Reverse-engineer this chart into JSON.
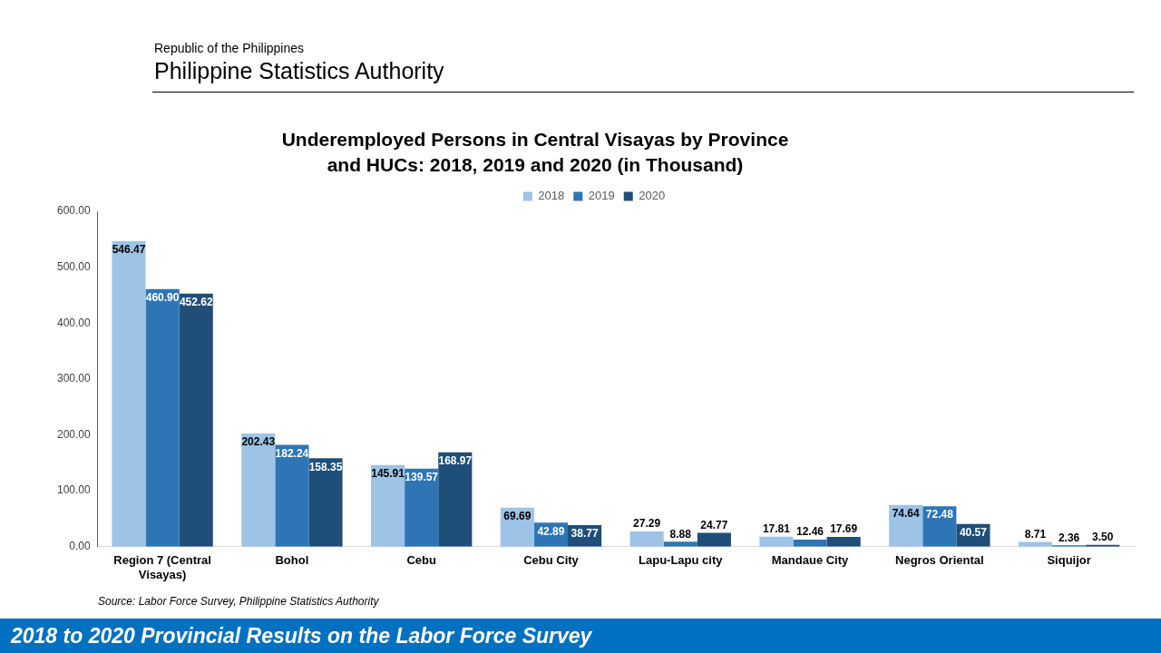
{
  "chart_data": {
    "type": "bar",
    "title": "Underemployed Persons in Central Visayas by Province and HUCs: 2018, 2019 and 2020 (in Thousand)",
    "categories": [
      "Region 7 (Central Visayas)",
      "Bohol",
      "Cebu",
      "Cebu City",
      "Lapu-Lapu city",
      "Mandaue City",
      "Negros Oriental",
      "Siquijor"
    ],
    "series": [
      {
        "name": "2018",
        "color": "#9dc3e6",
        "values": [
          546.47,
          202.43,
          145.91,
          69.69,
          27.29,
          17.81,
          74.64,
          8.71
        ],
        "value_labels": [
          "546.47",
          "202.43",
          "145.91",
          "69.69",
          "27.29",
          "17.81",
          "74.64",
          "8.71"
        ]
      },
      {
        "name": "2019",
        "color": "#2e75b6",
        "values": [
          460.9,
          182.24,
          139.57,
          42.89,
          8.88,
          12.46,
          72.48,
          2.36
        ],
        "value_labels": [
          "460.90",
          "182.24",
          "139.57",
          "42.89",
          "8.88",
          "12.46",
          "72.48",
          "2.36"
        ]
      },
      {
        "name": "2020",
        "color": "#1f4e79",
        "values": [
          452.62,
          158.35,
          168.97,
          38.77,
          24.77,
          17.69,
          40.57,
          3.5
        ],
        "value_labels": [
          "452.62",
          "158.35",
          "168.97",
          "38.77",
          "24.77",
          "17.69",
          "40.57",
          "3.50"
        ]
      }
    ],
    "ylim": [
      0,
      600
    ],
    "yticks": [
      {
        "value": 0,
        "label": "0.00"
      },
      {
        "value": 100,
        "label": "100.00"
      },
      {
        "value": 200,
        "label": "200.00"
      },
      {
        "value": 300,
        "label": "300.00"
      },
      {
        "value": 400,
        "label": "400.00"
      },
      {
        "value": 500,
        "label": "500.00"
      },
      {
        "value": 600,
        "label": "600.00"
      }
    ],
    "grid": false,
    "legend": "top",
    "annotations": [
      "Republic of the Philippines",
      "Philippine Statistics Authority",
      "Source: Labor Force Survey, Philippine Statistics Authority",
      "2018 to 2020 Provincial Results on the Labor Force Survey"
    ]
  }
}
